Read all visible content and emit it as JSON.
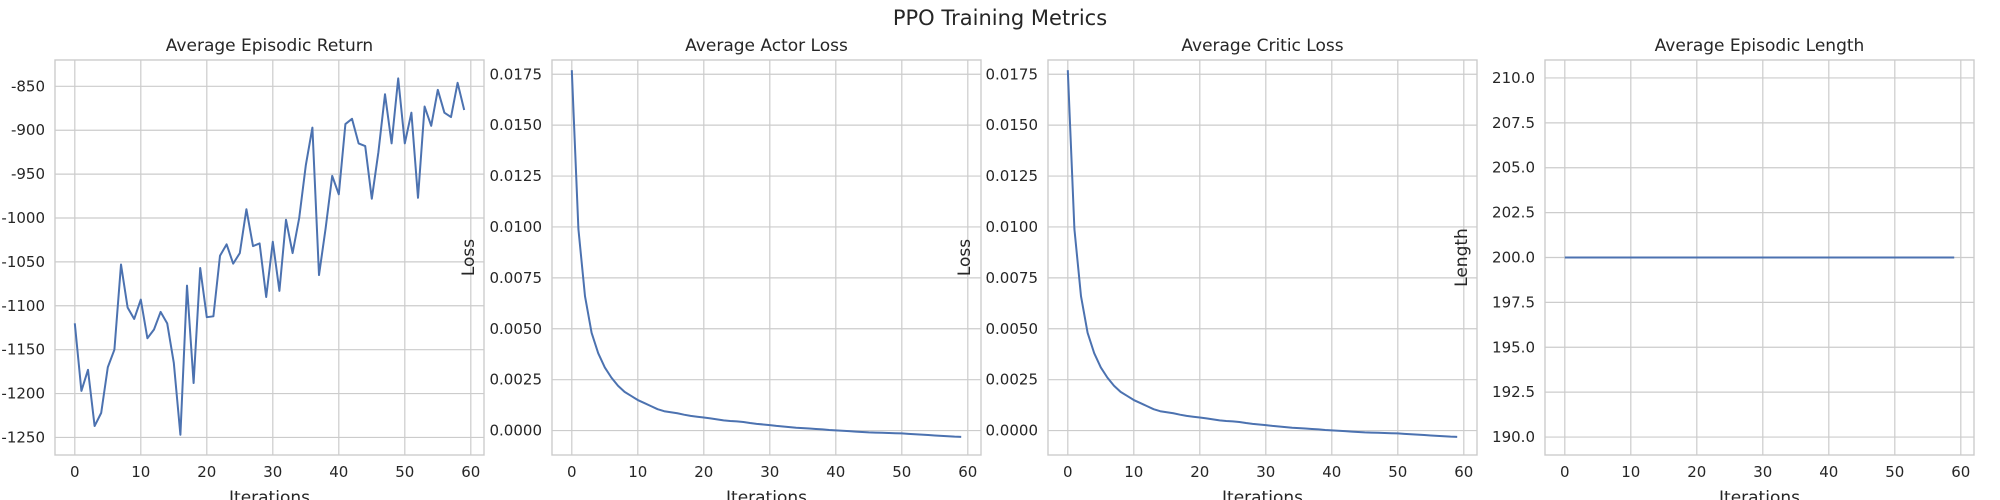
{
  "figure": {
    "title": "PPO Training Metrics"
  },
  "chart_data": [
    {
      "type": "line",
      "title": "Average Episodic Return",
      "xlabel": "Iterations",
      "ylabel": "",
      "xlim": [
        -3,
        62
      ],
      "ylim": [
        -1270,
        -820
      ],
      "xticks": [
        0,
        10,
        20,
        30,
        40,
        50,
        60
      ],
      "yticks": [
        -1250,
        -1200,
        -1150,
        -1100,
        -1050,
        -1000,
        -950,
        -900,
        -850
      ],
      "yticklabels": [
        "-1250",
        "-1200",
        "-1150",
        "-1100",
        "-1050",
        "-1000",
        "-950",
        "-900",
        "-850"
      ],
      "grid": true,
      "color": "#4c72b0",
      "series": [
        {
          "x": [
            0,
            1,
            2,
            3,
            4,
            5,
            6,
            7,
            8,
            9,
            10,
            11,
            12,
            13,
            14,
            15,
            16,
            17,
            18,
            19,
            20,
            21,
            22,
            23,
            24,
            25,
            26,
            27,
            28,
            29,
            30,
            31,
            32,
            33,
            34,
            35,
            36,
            37,
            38,
            39,
            40,
            41,
            42,
            43,
            44,
            45,
            46,
            47,
            48,
            49,
            50,
            51,
            52,
            53,
            54,
            55,
            56,
            57,
            58,
            59
          ],
          "values": [
            -1120,
            -1197,
            -1173,
            -1237,
            -1222,
            -1170,
            -1150,
            -1053,
            -1102,
            -1115,
            -1093,
            -1137,
            -1127,
            -1107,
            -1120,
            -1165,
            -1247,
            -1077,
            -1188,
            -1057,
            -1113,
            -1112,
            -1043,
            -1030,
            -1052,
            -1040,
            -990,
            -1032,
            -1029,
            -1090,
            -1027,
            -1083,
            -1002,
            -1040,
            -1000,
            -940,
            -897,
            -1065,
            -1012,
            -952,
            -973,
            -893,
            -887,
            -915,
            -918,
            -978,
            -925,
            -859,
            -915,
            -841,
            -915,
            -880,
            -977,
            -873,
            -895,
            -854,
            -880,
            -885,
            -846,
            -877
          ]
        }
      ]
    },
    {
      "type": "line",
      "title": "Average Actor Loss",
      "xlabel": "Iterations",
      "ylabel": "Loss",
      "xlim": [
        -3,
        62
      ],
      "ylim": [
        -0.0012,
        0.0182
      ],
      "xticks": [
        0,
        10,
        20,
        30,
        40,
        50,
        60
      ],
      "yticks": [
        0,
        0.0025,
        0.005,
        0.0075,
        0.01,
        0.0125,
        0.015,
        0.0175
      ],
      "yticklabels": [
        "0.0000",
        "0.0025",
        "0.0050",
        "0.0075",
        "0.0100",
        "0.0125",
        "0.0150",
        "0.0175"
      ],
      "grid": true,
      "color": "#4c72b0",
      "series": [
        {
          "x": [
            0,
            1,
            2,
            3,
            4,
            5,
            6,
            7,
            8,
            9,
            10,
            11,
            12,
            13,
            14,
            15,
            16,
            17,
            18,
            19,
            20,
            21,
            22,
            23,
            24,
            25,
            26,
            27,
            28,
            29,
            30,
            31,
            32,
            33,
            34,
            35,
            36,
            37,
            38,
            39,
            40,
            41,
            42,
            43,
            44,
            45,
            46,
            47,
            48,
            49,
            50,
            51,
            52,
            53,
            54,
            55,
            56,
            57,
            58,
            59
          ],
          "values": [
            0.0177,
            0.0099,
            0.0066,
            0.0048,
            0.0038,
            0.0031,
            0.0026,
            0.0022,
            0.0019,
            0.0017,
            0.0015,
            0.00135,
            0.0012,
            0.00105,
            0.00095,
            0.0009,
            0.00085,
            0.00078,
            0.00072,
            0.00068,
            0.00064,
            0.0006,
            0.00055,
            0.0005,
            0.00047,
            0.00045,
            0.00042,
            0.00037,
            0.00033,
            0.0003,
            0.00027,
            0.00023,
            0.0002,
            0.00017,
            0.00014,
            0.00012,
            0.0001,
            8e-05,
            6e-05,
            3e-05,
            1e-05,
            -1e-05,
            -3e-05,
            -5e-05,
            -7e-05,
            -9e-05,
            -0.0001,
            -0.00011,
            -0.00012,
            -0.00013,
            -0.00014,
            -0.00016,
            -0.00018,
            -0.0002,
            -0.00022,
            -0.00024,
            -0.00026,
            -0.00028,
            -0.0003,
            -0.00031
          ]
        }
      ]
    },
    {
      "type": "line",
      "title": "Average Critic Loss",
      "xlabel": "Iterations",
      "ylabel": "Loss",
      "xlim": [
        -3,
        62
      ],
      "ylim": [
        -0.0012,
        0.0182
      ],
      "xticks": [
        0,
        10,
        20,
        30,
        40,
        50,
        60
      ],
      "yticks": [
        0,
        0.0025,
        0.005,
        0.0075,
        0.01,
        0.0125,
        0.015,
        0.0175
      ],
      "yticklabels": [
        "0.0000",
        "0.0025",
        "0.0050",
        "0.0075",
        "0.0100",
        "0.0125",
        "0.0150",
        "0.0175"
      ],
      "grid": true,
      "color": "#4c72b0",
      "series": [
        {
          "x": [
            0,
            1,
            2,
            3,
            4,
            5,
            6,
            7,
            8,
            9,
            10,
            11,
            12,
            13,
            14,
            15,
            16,
            17,
            18,
            19,
            20,
            21,
            22,
            23,
            24,
            25,
            26,
            27,
            28,
            29,
            30,
            31,
            32,
            33,
            34,
            35,
            36,
            37,
            38,
            39,
            40,
            41,
            42,
            43,
            44,
            45,
            46,
            47,
            48,
            49,
            50,
            51,
            52,
            53,
            54,
            55,
            56,
            57,
            58,
            59
          ],
          "values": [
            0.0177,
            0.0099,
            0.0066,
            0.0048,
            0.0038,
            0.0031,
            0.0026,
            0.0022,
            0.0019,
            0.0017,
            0.0015,
            0.00135,
            0.0012,
            0.00105,
            0.00095,
            0.0009,
            0.00085,
            0.00078,
            0.00072,
            0.00068,
            0.00064,
            0.0006,
            0.00055,
            0.0005,
            0.00047,
            0.00045,
            0.00042,
            0.00037,
            0.00033,
            0.0003,
            0.00027,
            0.00023,
            0.0002,
            0.00017,
            0.00014,
            0.00012,
            0.0001,
            8e-05,
            6e-05,
            3e-05,
            1e-05,
            -1e-05,
            -3e-05,
            -5e-05,
            -7e-05,
            -9e-05,
            -0.0001,
            -0.00011,
            -0.00012,
            -0.00013,
            -0.00014,
            -0.00016,
            -0.00018,
            -0.0002,
            -0.00022,
            -0.00024,
            -0.00026,
            -0.00028,
            -0.0003,
            -0.00031
          ]
        }
      ]
    },
    {
      "type": "line",
      "title": "Average Episodic Length",
      "xlabel": "Iterations",
      "ylabel": "Length",
      "xlim": [
        -3,
        62
      ],
      "ylim": [
        189,
        211
      ],
      "xticks": [
        0,
        10,
        20,
        30,
        40,
        50,
        60
      ],
      "yticks": [
        190,
        192.5,
        195,
        197.5,
        200,
        202.5,
        205,
        207.5,
        210
      ],
      "yticklabels": [
        "190.0",
        "192.5",
        "195.0",
        "197.5",
        "200.0",
        "202.5",
        "205.0",
        "207.5",
        "210.0"
      ],
      "grid": true,
      "color": "#4c72b0",
      "series": [
        {
          "x": [
            0,
            59
          ],
          "values": [
            200,
            200
          ]
        }
      ]
    }
  ]
}
